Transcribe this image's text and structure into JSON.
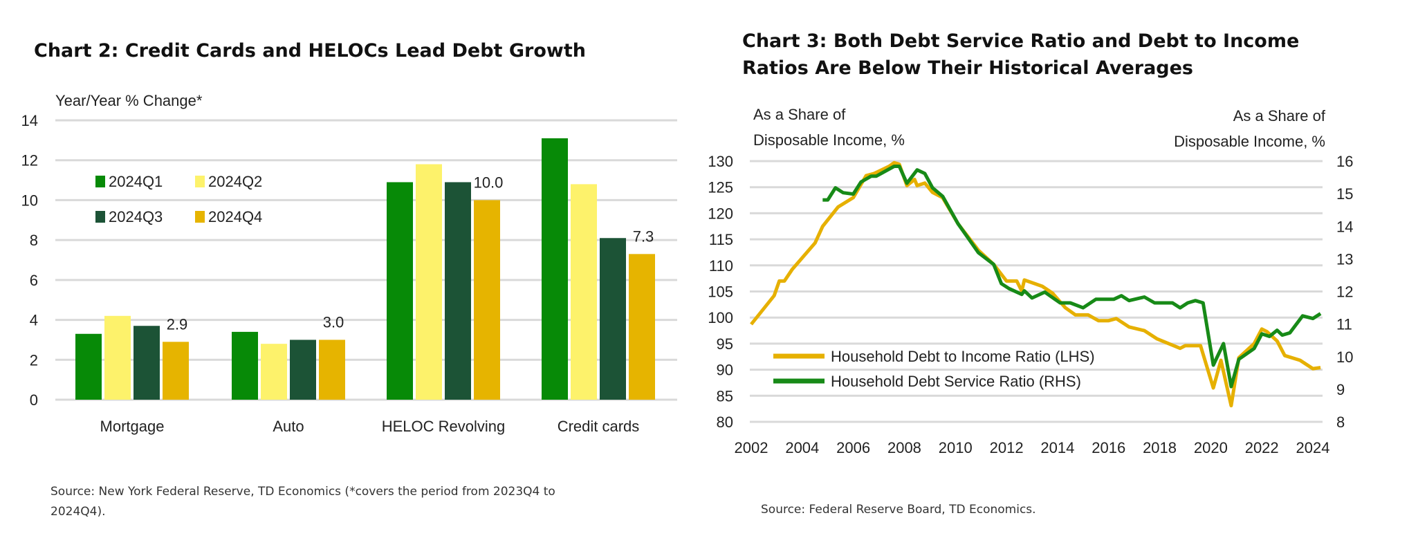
{
  "chart_data": [
    {
      "type": "bar",
      "title": "Chart 2: Credit Cards and HELOCs Lead Debt Growth",
      "ylabel": "Year/Year % Change*",
      "xlabel": "",
      "ylim": [
        0,
        14
      ],
      "yticks": [
        "0",
        "2",
        "4",
        "6",
        "8",
        "10",
        "12",
        "14"
      ],
      "grid": true,
      "legend_position": "top-left",
      "categories": [
        "Mortgage",
        "Auto",
        "HELOC Revolving",
        "Credit cards"
      ],
      "series": [
        {
          "name": "2024Q1",
          "color": "#078a07",
          "values": [
            3.3,
            3.4,
            10.9,
            13.1
          ]
        },
        {
          "name": "2024Q2",
          "color": "#fdf26b",
          "values": [
            4.2,
            2.8,
            11.8,
            10.8
          ]
        },
        {
          "name": "2024Q3",
          "color": "#1c5336",
          "values": [
            3.7,
            3.0,
            10.9,
            8.1
          ]
        },
        {
          "name": "2024Q4",
          "color": "#e6b400",
          "values": [
            2.9,
            3.0,
            10.0,
            7.3
          ]
        }
      ],
      "data_labels": [
        "2.9",
        "3.0",
        "10.0",
        "7.3"
      ],
      "source": "Source:  New York Federal Reserve, TD Economics (*covers the period from 2023Q4 to",
      "source_line2": "2024Q4)."
    },
    {
      "type": "line",
      "title": "Chart 3: Both Debt Service Ratio and Debt to Income",
      "title_line2": "Ratios Are Below Their Historical Averages",
      "ylabel_left": [
        "As a Share of",
        "Disposable Income, %"
      ],
      "ylabel_right": [
        "As a Share of",
        "Disposable Income, %"
      ],
      "ylim_left": [
        80,
        130
      ],
      "ylim_right": [
        8,
        16
      ],
      "xlim": [
        2002,
        2024.8
      ],
      "yticks_left": [
        "80",
        "85",
        "90",
        "95",
        "100",
        "105",
        "110",
        "115",
        "120",
        "125",
        "130"
      ],
      "yticks_right": [
        "8",
        "9",
        "10",
        "11",
        "12",
        "13",
        "14",
        "15",
        "16"
      ],
      "xticks": [
        "2002",
        "2004",
        "2006",
        "2008",
        "2010",
        "2012",
        "2014",
        "2016",
        "2018",
        "2020",
        "2022",
        "2024"
      ],
      "grid": true,
      "legend_position": "bottom-left",
      "series": [
        {
          "name": "Household Debt to Income Ratio (LHS)",
          "axis": "left",
          "color": "#e6b000",
          "x": [
            2002.0,
            2002.9,
            2003.1,
            2003.3,
            2003.6,
            2004.5,
            2004.8,
            2005.4,
            2006.0,
            2006.5,
            2006.8,
            2007.4,
            2007.6,
            2007.8,
            2008.1,
            2008.4,
            2008.5,
            2008.8,
            2009.1,
            2009.5,
            2010.1,
            2010.9,
            2011.5,
            2012.0,
            2012.4,
            2012.6,
            2012.7,
            2013.4,
            2013.8,
            2014.3,
            2014.7,
            2015.2,
            2015.6,
            2016.0,
            2016.3,
            2016.8,
            2017.4,
            2017.9,
            2018.8,
            2019.0,
            2019.6,
            2020.1,
            2020.4,
            2020.8,
            2021.1,
            2021.7,
            2022.0,
            2022.2,
            2022.6,
            2022.9,
            2023.5,
            2024.0,
            2024.3
          ],
          "y": [
            98.7,
            104.2,
            107,
            107,
            109.2,
            114.3,
            117.5,
            121.2,
            123,
            127.2,
            127.6,
            129,
            129.7,
            129.4,
            125.3,
            126.5,
            125.3,
            125.8,
            124,
            123,
            118,
            112.9,
            110.2,
            107,
            107,
            105.1,
            107.2,
            106,
            104.7,
            101.9,
            100.5,
            100.5,
            99.4,
            99.4,
            99.8,
            98.2,
            97.5,
            95.9,
            94.1,
            94.6,
            94.6,
            86.5,
            91.8,
            83.1,
            92.3,
            95,
            97.8,
            97.3,
            95.5,
            92.7,
            91.8,
            90.2,
            90.4
          ]
        },
        {
          "name": "Household Debt Service Ratio (RHS)",
          "axis": "right",
          "color": "#178a17",
          "x": [
            2004.8,
            2005.0,
            2005.3,
            2005.6,
            2006.0,
            2006.3,
            2006.7,
            2006.9,
            2007.6,
            2007.8,
            2008.1,
            2008.5,
            2008.8,
            2009.1,
            2009.5,
            2010.1,
            2010.9,
            2011.5,
            2011.8,
            2012.1,
            2012.6,
            2012.7,
            2013.0,
            2013.5,
            2014.1,
            2014.5,
            2015.0,
            2015.5,
            2016.2,
            2016.5,
            2016.8,
            2017.4,
            2017.8,
            2018.5,
            2018.8,
            2019.1,
            2019.4,
            2019.7,
            2020.1,
            2020.5,
            2020.8,
            2021.1,
            2021.7,
            2022.0,
            2022.3,
            2022.6,
            2022.8,
            2023.1,
            2023.6,
            2024.0,
            2024.3
          ],
          "y": [
            14.81,
            14.81,
            15.18,
            15.03,
            14.99,
            15.36,
            15.54,
            15.54,
            15.84,
            15.84,
            15.32,
            15.73,
            15.62,
            15.18,
            14.92,
            14.08,
            13.19,
            12.83,
            12.24,
            12.09,
            11.91,
            12.02,
            11.8,
            11.98,
            11.65,
            11.65,
            11.5,
            11.76,
            11.76,
            11.87,
            11.72,
            11.83,
            11.65,
            11.65,
            11.5,
            11.65,
            11.72,
            11.65,
            9.74,
            10.4,
            9.08,
            9.92,
            10.25,
            10.7,
            10.62,
            10.81,
            10.66,
            10.73,
            11.25,
            11.17,
            11.32
          ]
        }
      ],
      "source": "Source: Federal Reserve Board, TD Economics."
    }
  ]
}
